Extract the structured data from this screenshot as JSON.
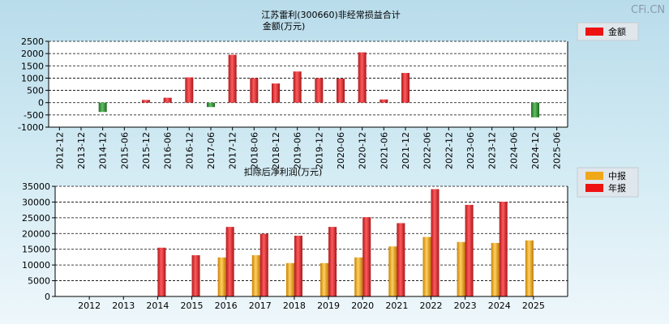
{
  "watermark": "CFi.CN",
  "chart_data": [
    {
      "type": "bar",
      "title": "江苏雷利(300660)非经常损益合计",
      "subtitle": "金额(万元)",
      "ylim": [
        -1000,
        2500
      ],
      "yticks": [
        -1000,
        -500,
        0,
        500,
        1000,
        1500,
        2000,
        2500
      ],
      "grid": true,
      "legend_position": "top-right",
      "categories": [
        "2012-12",
        "2013-12",
        "2014-12",
        "2015-06",
        "2015-12",
        "2016-06",
        "2016-12",
        "2017-06",
        "2017-12",
        "2018-06",
        "2018-12",
        "2019-06",
        "2019-12",
        "2020-06",
        "2020-12",
        "2021-06",
        "2021-12",
        "2022-06",
        "2022-12",
        "2023-06",
        "2023-12",
        "2024-06",
        "2024-12",
        "2025-06"
      ],
      "series": [
        {
          "name": "金额",
          "values": [
            null,
            null,
            -380,
            null,
            110,
            200,
            1030,
            -180,
            1950,
            1000,
            780,
            1270,
            1000,
            980,
            2050,
            130,
            1210,
            null,
            null,
            null,
            null,
            null,
            -600,
            null
          ]
        }
      ],
      "colors": {
        "positive": "#e8363a",
        "negative": "#3a9a3a",
        "legend": "#ee1111"
      }
    },
    {
      "type": "bar",
      "title": "扣除后净利润(万元)",
      "ylim": [
        0,
        35000
      ],
      "yticks": [
        0,
        5000,
        10000,
        15000,
        20000,
        25000,
        30000,
        35000
      ],
      "grid": true,
      "legend_position": "top-right",
      "categories": [
        "2012",
        "2013",
        "2014",
        "2015",
        "2016",
        "2017",
        "2018",
        "2019",
        "2020",
        "2021",
        "2022",
        "2023",
        "2024",
        "2025"
      ],
      "series": [
        {
          "name": "中报",
          "values": [
            null,
            null,
            null,
            null,
            12400,
            13100,
            10600,
            10600,
            12400,
            15900,
            18900,
            17300,
            17000,
            17800
          ]
        },
        {
          "name": "年报",
          "values": [
            null,
            null,
            15500,
            13100,
            22100,
            19900,
            19300,
            22100,
            25200,
            23300,
            34100,
            29100,
            30100,
            null
          ]
        }
      ],
      "colors": {
        "中报": "#f0a818",
        "年报": "#e8363a"
      }
    }
  ]
}
